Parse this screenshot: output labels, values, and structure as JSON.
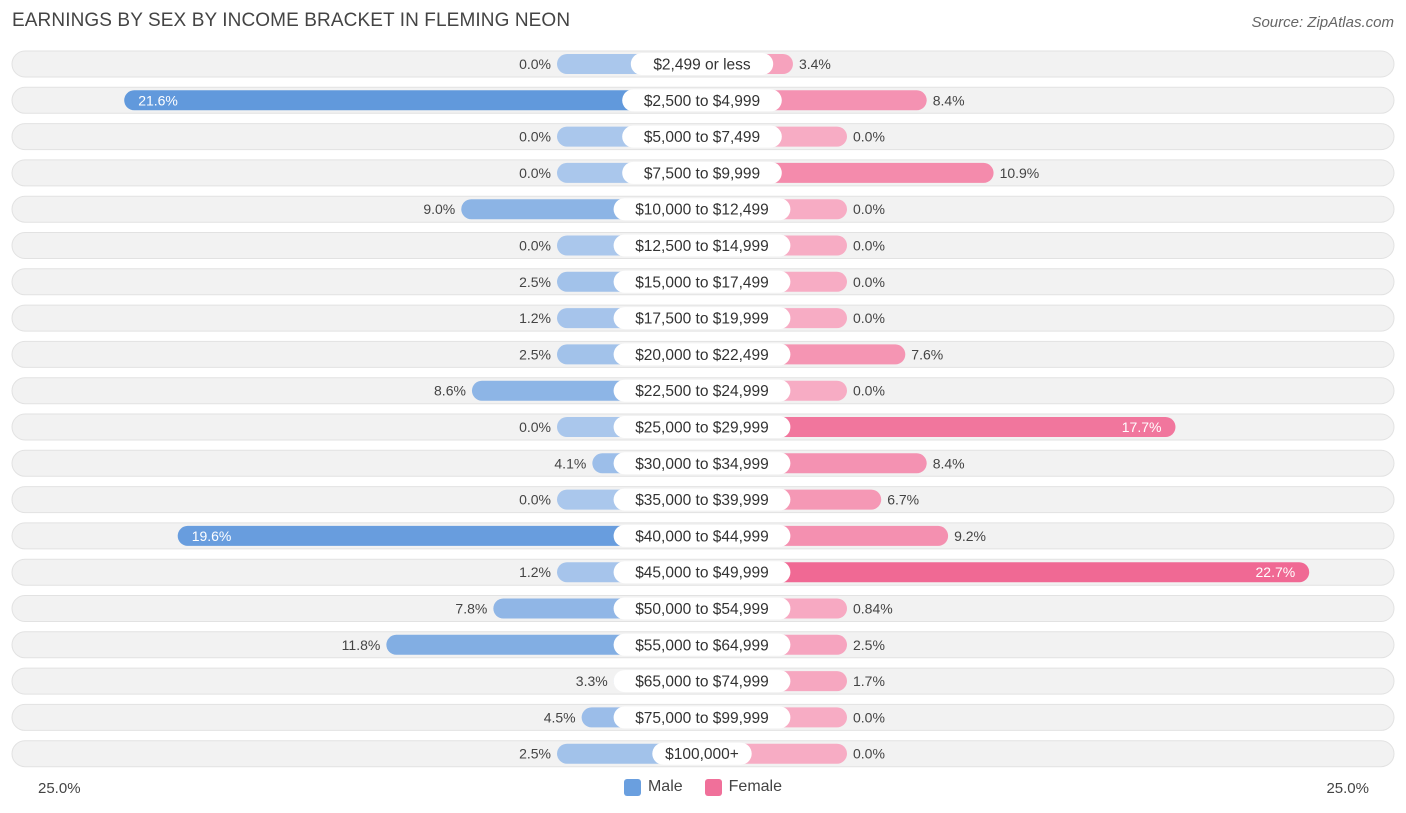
{
  "title": "EARNINGS BY SEX BY INCOME BRACKET IN FLEMING NEON",
  "source": "Source: ZipAtlas.com",
  "axis": {
    "left_label": "25.0%",
    "right_label": "25.0%"
  },
  "legend": {
    "male_label": "Male",
    "female_label": "Female",
    "male_color": "#6a9fdf",
    "female_color": "#f0709a"
  },
  "chart_data": {
    "type": "bar",
    "orientation": "horizontal-diverging",
    "title": "EARNINGS BY SEX BY INCOME BRACKET IN FLEMING NEON",
    "xlim": [
      -25,
      25
    ],
    "categories": [
      "$2,499 or less",
      "$2,500 to $4,999",
      "$5,000 to $7,499",
      "$7,500 to $9,999",
      "$10,000 to $12,499",
      "$12,500 to $14,999",
      "$15,000 to $17,499",
      "$17,500 to $19,999",
      "$20,000 to $22,499",
      "$22,500 to $24,999",
      "$25,000 to $29,999",
      "$30,000 to $34,999",
      "$35,000 to $39,999",
      "$40,000 to $44,999",
      "$45,000 to $49,999",
      "$50,000 to $54,999",
      "$55,000 to $64,999",
      "$65,000 to $74,999",
      "$75,000 to $99,999",
      "$100,000+"
    ],
    "series": [
      {
        "name": "Male",
        "values": [
          0.0,
          21.6,
          0.0,
          0.0,
          9.0,
          0.0,
          2.5,
          1.2,
          2.5,
          8.6,
          0.0,
          4.1,
          0.0,
          19.6,
          1.2,
          7.8,
          11.8,
          3.3,
          4.5,
          2.5
        ],
        "labels": [
          "0.0%",
          "21.6%",
          "0.0%",
          "0.0%",
          "9.0%",
          "0.0%",
          "2.5%",
          "1.2%",
          "2.5%",
          "8.6%",
          "0.0%",
          "4.1%",
          "0.0%",
          "19.6%",
          "1.2%",
          "7.8%",
          "11.8%",
          "3.3%",
          "4.5%",
          "2.5%"
        ]
      },
      {
        "name": "Female",
        "values": [
          3.4,
          8.4,
          0.0,
          10.9,
          0.0,
          0.0,
          0.0,
          0.0,
          7.6,
          0.0,
          17.7,
          8.4,
          6.7,
          9.2,
          22.7,
          0.84,
          2.5,
          1.7,
          0.0,
          0.0
        ],
        "labels": [
          "3.4%",
          "8.4%",
          "0.0%",
          "10.9%",
          "0.0%",
          "0.0%",
          "0.0%",
          "0.0%",
          "7.6%",
          "0.0%",
          "17.7%",
          "8.4%",
          "6.7%",
          "9.2%",
          "22.7%",
          "0.84%",
          "2.5%",
          "1.7%",
          "0.0%",
          "0.0%"
        ]
      }
    ]
  }
}
